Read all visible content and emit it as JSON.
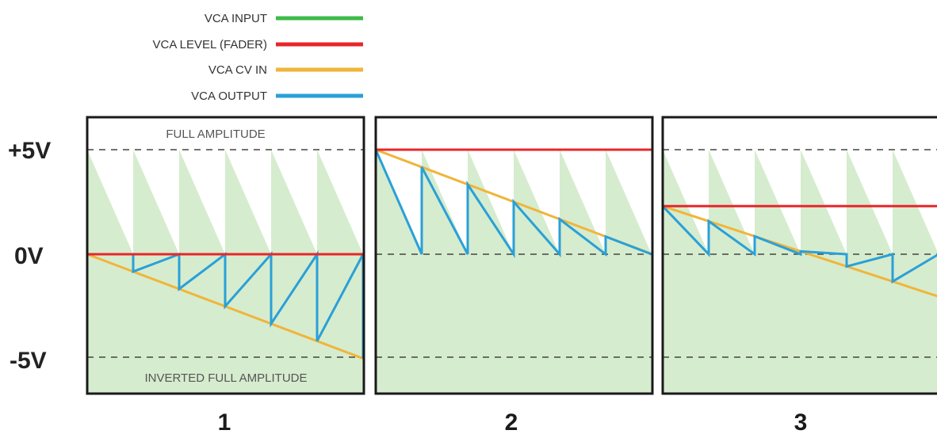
{
  "legend": [
    {
      "label": "VCA INPUT",
      "color": "#3dbb48"
    },
    {
      "label": "VCA LEVEL (FADER)",
      "color": "#e8262a"
    },
    {
      "label": "VCA CV IN",
      "color": "#f0b53a"
    },
    {
      "label": "VCA OUTPUT",
      "color": "#2aa0d8"
    }
  ],
  "axis_labels": {
    "plus": "+5V",
    "zero": "0V",
    "minus": "-5V"
  },
  "captions": {
    "top": "FULL AMPLITUDE",
    "bottom": "INVERTED FULL AMPLITUDE"
  },
  "panels": [
    {
      "number": "1",
      "fader_volts": 0,
      "cv_start_volts": 0,
      "cv_end_volts": -5
    },
    {
      "number": "2",
      "fader_volts": 5,
      "cv_start_volts": 5,
      "cv_end_volts": 0
    },
    {
      "number": "3",
      "fader_volts": 2.3,
      "cv_start_volts": 2.3,
      "cv_end_volts": -2.1
    }
  ],
  "colors": {
    "fill": "#d6ecce",
    "frame": "#1a1a1a",
    "dash": "#444444"
  }
}
